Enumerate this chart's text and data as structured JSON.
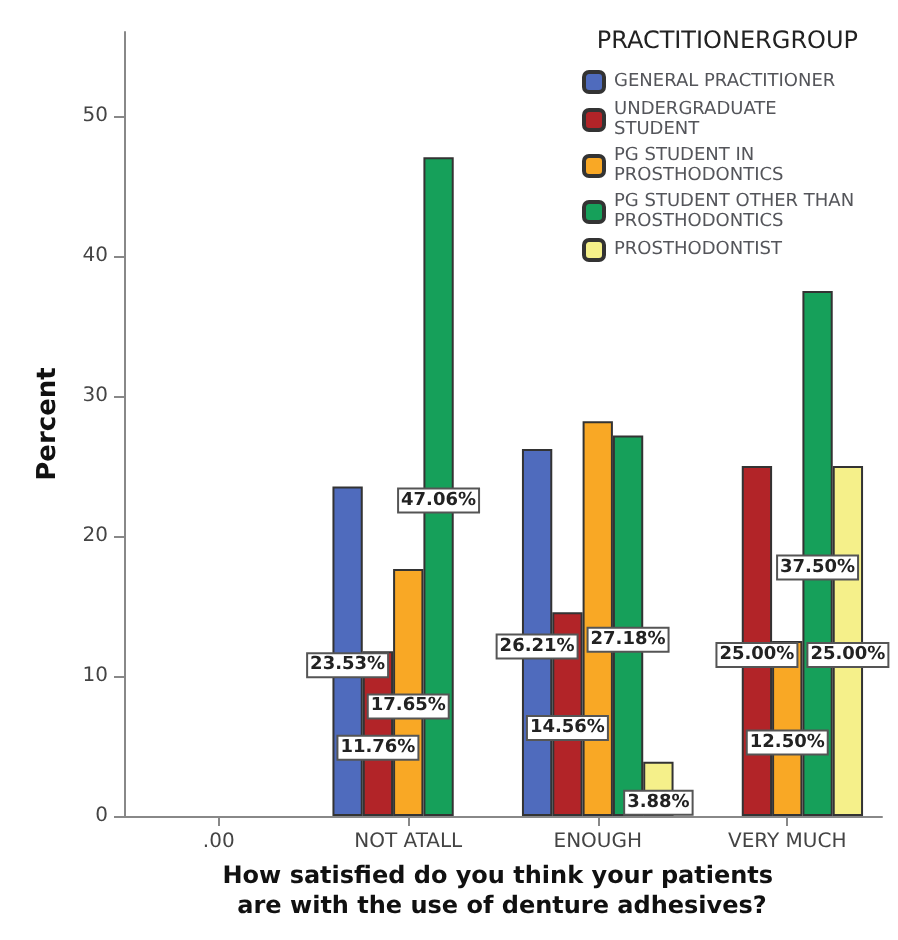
{
  "chart_data": {
    "type": "bar",
    "xlabel": "How satisfied do you think your patients are with the use of denture adhesives?",
    "ylabel": "Percent",
    "legend_title": "PRACTITIONERGROUP",
    "categories": [
      ".00",
      "NOT ATALL",
      "ENOUGH",
      "VERY MUCH"
    ],
    "series": [
      {
        "name": "GENERAL PRACTITIONER",
        "color": "#4f6bbd",
        "values": [
          null,
          23.53,
          26.21,
          null
        ],
        "value_labels": [
          null,
          "23.53%",
          "26.21%",
          null
        ]
      },
      {
        "name": "UNDERGRADUATE STUDENT",
        "color": "#b22428",
        "values": [
          null,
          11.76,
          14.56,
          25.0
        ],
        "value_labels": [
          null,
          "11.76%",
          "14.56%",
          "25.00%"
        ]
      },
      {
        "name": "PG STUDENT IN PROSTHODONTICS",
        "color": "#f9a825",
        "values": [
          null,
          17.65,
          28.2,
          12.5
        ],
        "value_labels": [
          null,
          "17.65%",
          null,
          "12.50%"
        ]
      },
      {
        "name": "PG STUDENT OTHER THAN PROSTHODONTICS",
        "color": "#16a05a",
        "values": [
          null,
          47.06,
          27.18,
          37.5
        ],
        "value_labels": [
          null,
          "47.06%",
          "27.18%",
          "37.50%"
        ]
      },
      {
        "name": "PROSTHODONTIST",
        "color": "#f5f08a",
        "values": [
          null,
          null,
          3.88,
          25.0
        ],
        "value_labels": [
          null,
          null,
          "3.88%",
          "25.00%"
        ]
      }
    ],
    "ylim": [
      0,
      56
    ],
    "yticks": [
      0,
      10,
      20,
      30,
      40,
      50
    ],
    "grid": false,
    "legend": "top right"
  }
}
